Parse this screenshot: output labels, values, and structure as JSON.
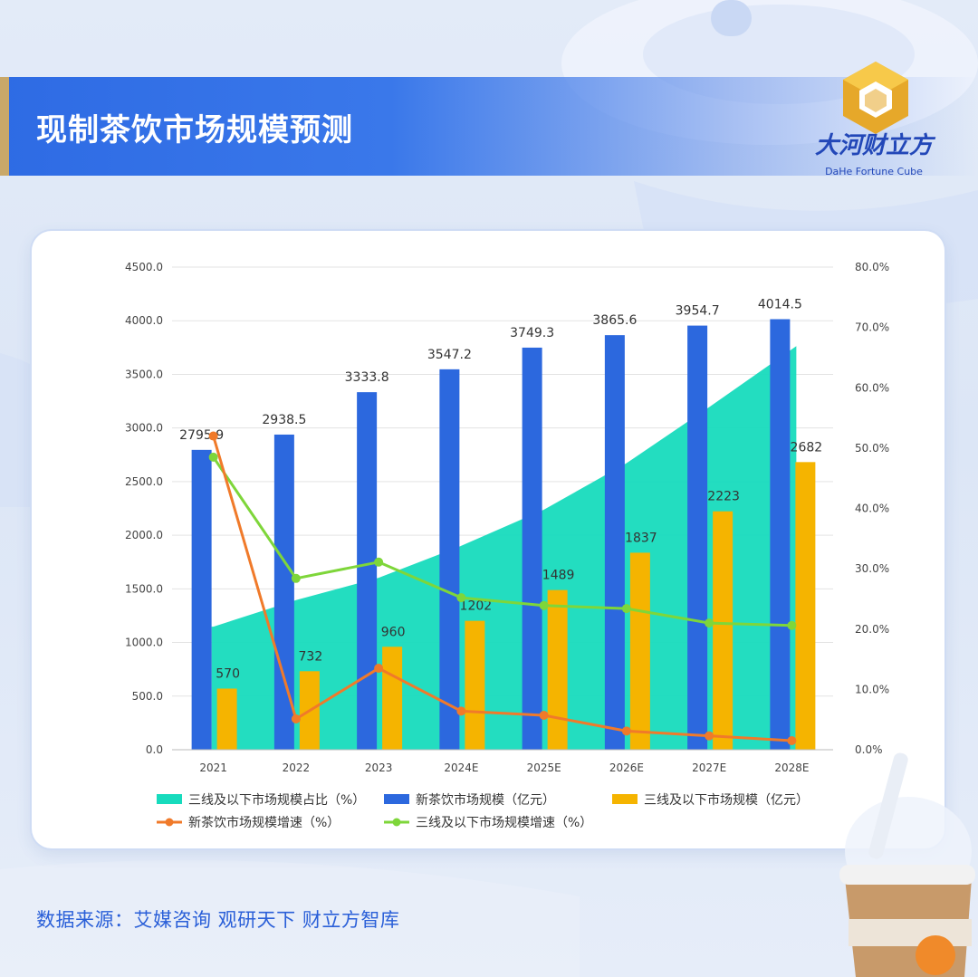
{
  "page": {
    "title": "现制茶饮市场规模预测",
    "source": "数据来源：艾媒咨询 观研天下 财立方智库",
    "logo_cn": "大河财立方",
    "logo_en": "DaHe Fortune Cube"
  },
  "colors": {
    "title_bar": "#2e6be4",
    "area_share": "#17dbbd",
    "bar_new_tea": "#2c68de",
    "bar_lower_tier": "#f5b400",
    "line_new_tea_growth": "#f07a2a",
    "line_lower_tier_growth": "#7ed63a"
  },
  "chart_data": {
    "type": "bar",
    "categories": [
      "2021",
      "2022",
      "2023",
      "2024E",
      "2025E",
      "2026E",
      "2027E",
      "2028E"
    ],
    "y_left": {
      "ticks": [
        "0.0",
        "500.0",
        "1000.0",
        "1500.0",
        "2000.0",
        "2500.0",
        "3000.0",
        "3500.0",
        "4000.0",
        "4500.0"
      ],
      "range": [
        0,
        4500
      ]
    },
    "y_right": {
      "ticks": [
        "0.0%",
        "10.0%",
        "20.0%",
        "30.0%",
        "40.0%",
        "50.0%",
        "60.0%",
        "70.0%",
        "80.0%"
      ],
      "range": [
        0,
        80
      ]
    },
    "grid": "horizontal",
    "legend_position": "bottom",
    "series": [
      {
        "name": "三线及以下市场规模占比（%）",
        "kind": "area",
        "axis": "right",
        "values": [
          20.4,
          24.8,
          28.5,
          33.8,
          39.8,
          47.5,
          56.8,
          66.9
        ]
      },
      {
        "name": "新茶饮市场规模（亿元）",
        "kind": "bar",
        "axis": "left",
        "values": [
          2795.9,
          2938.5,
          3333.8,
          3547.2,
          3749.3,
          3865.6,
          3954.7,
          4014.5
        ],
        "labels": [
          "2795.9",
          "2938.5",
          "3333.8",
          "3547.2",
          "3749.3",
          "3865.6",
          "3954.7",
          "4014.5"
        ]
      },
      {
        "name": "三线及以下市场规模（亿元）",
        "kind": "bar",
        "axis": "left",
        "values": [
          570,
          732,
          960,
          1202,
          1489,
          1837,
          2223,
          2682
        ],
        "labels": [
          "570",
          "732",
          "960",
          "1202",
          "1489",
          "1837",
          "2223",
          "2682"
        ]
      },
      {
        "name": "新茶饮市场规模增速（%）",
        "kind": "line",
        "axis": "right",
        "values": [
          52.0,
          5.1,
          13.5,
          6.4,
          5.7,
          3.1,
          2.3,
          1.5
        ]
      },
      {
        "name": "三线及以下市场规模增速（%）",
        "kind": "line",
        "axis": "right",
        "values": [
          48.5,
          28.4,
          31.1,
          25.2,
          23.9,
          23.4,
          21.0,
          20.6
        ]
      }
    ]
  }
}
